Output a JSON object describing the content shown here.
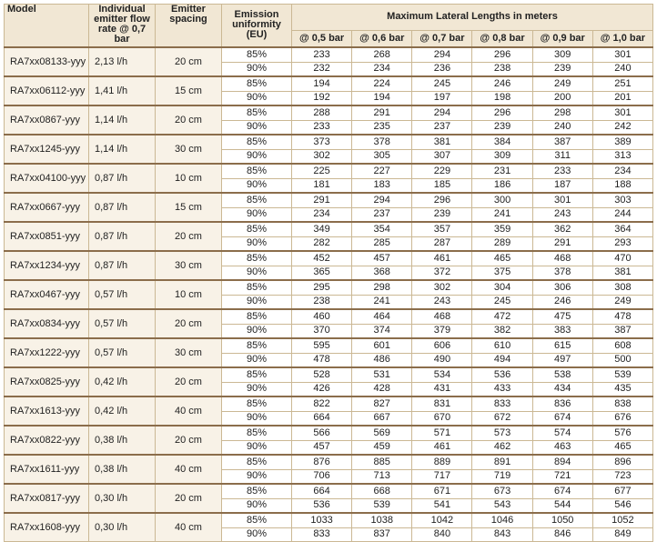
{
  "header": {
    "model": "Model",
    "flow": "Individual emitter flow rate @ 0,7 bar",
    "spacing": "Emitter spacing",
    "uniformity": "Emission uniformity (EU)",
    "lengths": "Maximum Lateral Lengths in meters",
    "pressures": [
      "@ 0,5 bar",
      "@ 0,6 bar",
      "@ 0,7 bar",
      "@ 0,8 bar",
      "@ 0,9 bar",
      "@ 1,0 bar"
    ]
  },
  "rows": [
    {
      "model": "RA7xx08133-yyy",
      "flow": "2,13 l/h",
      "spacing": "20 cm",
      "levels": [
        {
          "eu": "85%",
          "values": [
            233,
            268,
            294,
            296,
            309,
            301
          ]
        },
        {
          "eu": "90%",
          "values": [
            232,
            234,
            236,
            238,
            239,
            240
          ]
        }
      ]
    },
    {
      "model": "RA7xx06112-yyy",
      "flow": "1,41 l/h",
      "spacing": "15 cm",
      "levels": [
        {
          "eu": "85%",
          "values": [
            194,
            224,
            245,
            246,
            249,
            251
          ]
        },
        {
          "eu": "90%",
          "values": [
            192,
            194,
            197,
            198,
            200,
            201
          ]
        }
      ]
    },
    {
      "model": "RA7xx0867-yyy",
      "flow": "1,14 l/h",
      "spacing": "20 cm",
      "levels": [
        {
          "eu": "85%",
          "values": [
            288,
            291,
            294,
            296,
            298,
            301
          ]
        },
        {
          "eu": "90%",
          "values": [
            233,
            235,
            237,
            239,
            240,
            242
          ]
        }
      ]
    },
    {
      "model": "RA7xx1245-yyy",
      "flow": "1,14 l/h",
      "spacing": "30 cm",
      "levels": [
        {
          "eu": "85%",
          "values": [
            373,
            378,
            381,
            384,
            387,
            389
          ]
        },
        {
          "eu": "90%",
          "values": [
            302,
            305,
            307,
            309,
            311,
            313
          ]
        }
      ]
    },
    {
      "model": "RA7xx04100-yyy",
      "flow": "0,87 l/h",
      "spacing": "10 cm",
      "levels": [
        {
          "eu": "85%",
          "values": [
            225,
            227,
            229,
            231,
            233,
            234
          ]
        },
        {
          "eu": "90%",
          "values": [
            181,
            183,
            185,
            186,
            187,
            188
          ]
        }
      ]
    },
    {
      "model": "RA7xx0667-yyy",
      "flow": "0,87 l/h",
      "spacing": "15 cm",
      "levels": [
        {
          "eu": "85%",
          "values": [
            291,
            294,
            296,
            300,
            301,
            303
          ]
        },
        {
          "eu": "90%",
          "values": [
            234,
            237,
            239,
            241,
            243,
            244
          ]
        }
      ]
    },
    {
      "model": "RA7xx0851-yyy",
      "flow": "0,87 l/h",
      "spacing": "20 cm",
      "levels": [
        {
          "eu": "85%",
          "values": [
            349,
            354,
            357,
            359,
            362,
            364
          ]
        },
        {
          "eu": "90%",
          "values": [
            282,
            285,
            287,
            289,
            291,
            293
          ]
        }
      ]
    },
    {
      "model": "RA7xx1234-yyy",
      "flow": "0,87 l/h",
      "spacing": "30 cm",
      "levels": [
        {
          "eu": "85%",
          "values": [
            452,
            457,
            461,
            465,
            468,
            470
          ]
        },
        {
          "eu": "90%",
          "values": [
            365,
            368,
            372,
            375,
            378,
            381
          ]
        }
      ]
    },
    {
      "model": "RA7xx0467-yyy",
      "flow": "0,57 l/h",
      "spacing": "10 cm",
      "levels": [
        {
          "eu": "85%",
          "values": [
            295,
            298,
            302,
            304,
            306,
            308
          ]
        },
        {
          "eu": "90%",
          "values": [
            238,
            241,
            243,
            245,
            246,
            249
          ]
        }
      ]
    },
    {
      "model": "RA7xx0834-yyy",
      "flow": "0,57 l/h",
      "spacing": "20 cm",
      "levels": [
        {
          "eu": "85%",
          "values": [
            460,
            464,
            468,
            472,
            475,
            478
          ]
        },
        {
          "eu": "90%",
          "values": [
            370,
            374,
            379,
            382,
            383,
            387
          ]
        }
      ]
    },
    {
      "model": "RA7xx1222-yyy",
      "flow": "0,57 l/h",
      "spacing": "30 cm",
      "levels": [
        {
          "eu": "85%",
          "values": [
            595,
            601,
            606,
            610,
            615,
            608
          ]
        },
        {
          "eu": "90%",
          "values": [
            478,
            486,
            490,
            494,
            497,
            500
          ]
        }
      ]
    },
    {
      "model": "RA7xx0825-yyy",
      "flow": "0,42 l/h",
      "spacing": "20 cm",
      "levels": [
        {
          "eu": "85%",
          "values": [
            528,
            531,
            534,
            536,
            538,
            539
          ]
        },
        {
          "eu": "90%",
          "values": [
            426,
            428,
            431,
            433,
            434,
            435
          ]
        }
      ]
    },
    {
      "model": "RA7xx1613-yyy",
      "flow": "0,42 l/h",
      "spacing": "40 cm",
      "levels": [
        {
          "eu": "85%",
          "values": [
            822,
            827,
            831,
            833,
            836,
            838
          ]
        },
        {
          "eu": "90%",
          "values": [
            664,
            667,
            670,
            672,
            674,
            676
          ]
        }
      ]
    },
    {
      "model": "RA7xx0822-yyy",
      "flow": "0,38 l/h",
      "spacing": "20 cm",
      "levels": [
        {
          "eu": "85%",
          "values": [
            566,
            569,
            571,
            573,
            574,
            576
          ]
        },
        {
          "eu": "90%",
          "values": [
            457,
            459,
            461,
            462,
            463,
            465
          ]
        }
      ]
    },
    {
      "model": "RA7xx1611-yyy",
      "flow": "0,38 l/h",
      "spacing": "40 cm",
      "levels": [
        {
          "eu": "85%",
          "values": [
            876,
            885,
            889,
            891,
            894,
            896
          ]
        },
        {
          "eu": "90%",
          "values": [
            706,
            713,
            717,
            719,
            721,
            723
          ]
        }
      ]
    },
    {
      "model": "RA7xx0817-yyy",
      "flow": "0,30 l/h",
      "spacing": "20 cm",
      "levels": [
        {
          "eu": "85%",
          "values": [
            664,
            668,
            671,
            673,
            674,
            677
          ]
        },
        {
          "eu": "90%",
          "values": [
            536,
            539,
            541,
            543,
            544,
            546
          ]
        }
      ]
    },
    {
      "model": "RA7xx1608-yyy",
      "flow": "0,30 l/h",
      "spacing": "40 cm",
      "levels": [
        {
          "eu": "85%",
          "values": [
            1033,
            1038,
            1042,
            1046,
            1050,
            1052
          ]
        },
        {
          "eu": "90%",
          "values": [
            833,
            837,
            840,
            843,
            846,
            849
          ]
        }
      ]
    }
  ]
}
